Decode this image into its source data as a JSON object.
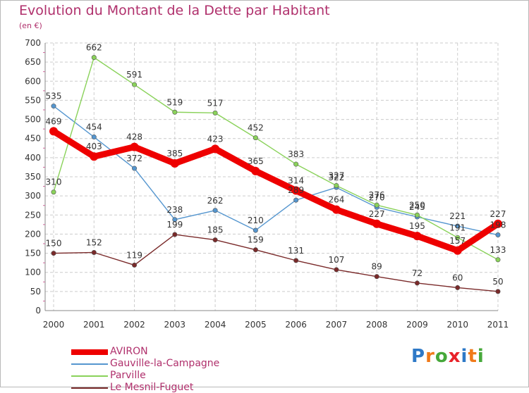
{
  "chart_data": {
    "type": "line",
    "title": "Evolution du Montant de la Dette par Habitant",
    "subtitle": "(en €)",
    "x": [
      "2000",
      "2001",
      "2002",
      "2003",
      "2004",
      "2005",
      "2006",
      "2007",
      "2008",
      "2009",
      "2010",
      "2011"
    ],
    "yticks": [
      0,
      50,
      100,
      150,
      200,
      250,
      300,
      350,
      400,
      450,
      500,
      550,
      600,
      650,
      700
    ],
    "ylim": [
      0,
      700
    ],
    "grid": true,
    "legend_position": "bottom-left",
    "series": [
      {
        "name": "AVIRON",
        "color": "#ee0000",
        "values": [
          469,
          403,
          428,
          385,
          423,
          365,
          314,
          264,
          227,
          195,
          157,
          227
        ]
      },
      {
        "name": "Gauville-la-Campagne",
        "color": "#5596cf",
        "values": [
          535,
          454,
          372,
          238,
          262,
          210,
          289,
          322,
          270,
          245,
          221,
          198
        ]
      },
      {
        "name": "Parville",
        "color": "#8ad25a",
        "values": [
          310,
          662,
          591,
          519,
          517,
          452,
          383,
          327,
          276,
          250,
          191,
          133
        ]
      },
      {
        "name": "Le Mesnil-Fuguet",
        "color": "#7a2a2a",
        "values": [
          150,
          152,
          119,
          199,
          185,
          159,
          131,
          107,
          89,
          72,
          60,
          50
        ]
      }
    ]
  },
  "logo": {
    "letters": [
      "P",
      "r",
      "o",
      "x",
      "i",
      "t",
      "i"
    ],
    "colors": [
      "#2e79c7",
      "#f07a1a",
      "#46a83a",
      "#e8232a",
      "#2e79c7",
      "#f07a1a",
      "#46a83a"
    ]
  }
}
